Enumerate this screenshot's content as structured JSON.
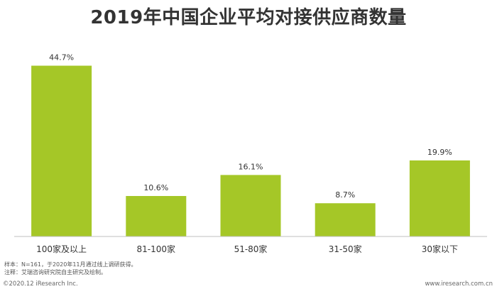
{
  "title": "2019年中国企业平均对接供应商数量",
  "chart_data": {
    "type": "bar",
    "title": "2019年中国企业平均对接供应商数量",
    "categories": [
      "100家及以上",
      "81-100家",
      "51-80家",
      "31-50家",
      "30家以下"
    ],
    "values": [
      44.7,
      10.6,
      16.1,
      8.7,
      19.9
    ],
    "value_labels": [
      "44.7%",
      "10.6%",
      "16.1%",
      "8.7%",
      "19.9%"
    ],
    "unit": "%",
    "ylim": [
      0,
      50
    ],
    "bar_color": "#a5c727",
    "grid": false,
    "legend": "none"
  },
  "footer": {
    "sample_note": "样本：N=161，于2020年11月通过线上调研获得。",
    "source_note": "注释：艾瑞咨询研究院自主研究及绘制。",
    "copyright": "©2020.12 iResearch Inc.",
    "site": "www.iresearch.com.cn"
  }
}
